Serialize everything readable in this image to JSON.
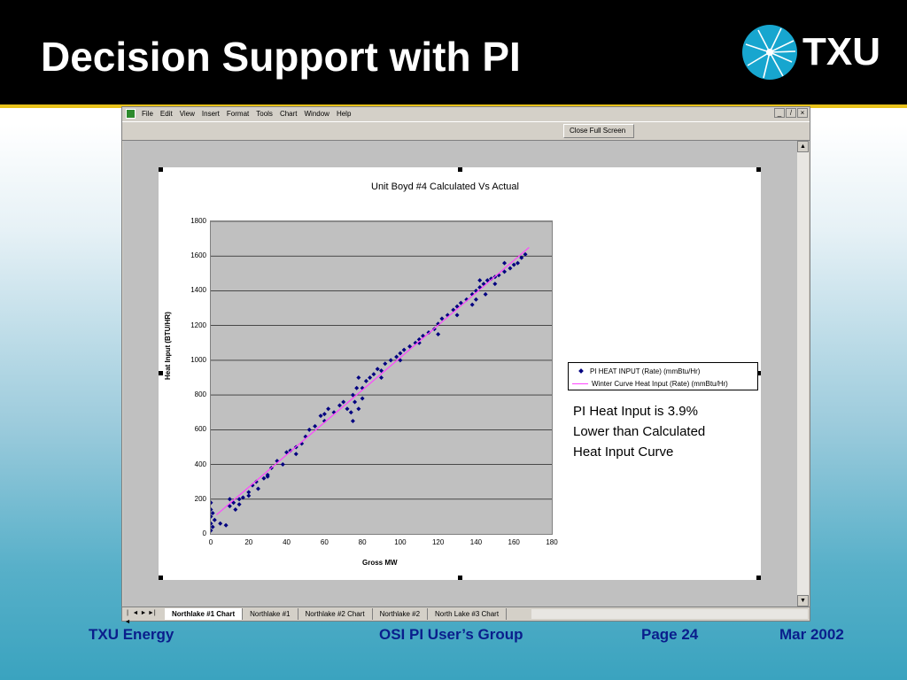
{
  "slide": {
    "title": "Decision Support with PI",
    "logo_text": "TXU"
  },
  "excel": {
    "menu": [
      "File",
      "Edit",
      "View",
      "Insert",
      "Format",
      "Tools",
      "Chart",
      "Window",
      "Help"
    ],
    "window_controls": [
      "_",
      "̸",
      "×"
    ],
    "close_full_screen_label": "Close Full Screen",
    "sheet_tabs": [
      "Northlake #1 Chart",
      "Northlake #1",
      "Northlake #2 Chart",
      "Northlake #2",
      "North Lake #3 Chart"
    ],
    "active_tab_index": 0
  },
  "chart_data": {
    "type": "scatter",
    "title": "Unit Boyd #4 Calculated Vs Actual",
    "xlabel": "Gross MW",
    "ylabel": "Heat Input (BTU/HR)",
    "xlim": [
      0,
      180
    ],
    "ylim": [
      0,
      1800
    ],
    "x_ticks": [
      0,
      20,
      40,
      60,
      80,
      100,
      120,
      140,
      160,
      180
    ],
    "y_ticks": [
      0,
      200,
      400,
      600,
      800,
      1000,
      1200,
      1400,
      1600,
      1800
    ],
    "grid": "horizontal",
    "legend_position": "right",
    "series": [
      {
        "name": "PI HEAT INPUT (Rate) (mmBtu/Hr)",
        "marker": "diamond",
        "color": "#000080",
        "points": [
          [
            0,
            20
          ],
          [
            0,
            60
          ],
          [
            0,
            100
          ],
          [
            0,
            140
          ],
          [
            0,
            180
          ],
          [
            1,
            40
          ],
          [
            1,
            120
          ],
          [
            2,
            80
          ],
          [
            5,
            60
          ],
          [
            8,
            50
          ],
          [
            10,
            160
          ],
          [
            10,
            200
          ],
          [
            12,
            180
          ],
          [
            13,
            140
          ],
          [
            15,
            170
          ],
          [
            17,
            210
          ],
          [
            20,
            240
          ],
          [
            22,
            280
          ],
          [
            24,
            300
          ],
          [
            25,
            260
          ],
          [
            28,
            320
          ],
          [
            30,
            340
          ],
          [
            32,
            380
          ],
          [
            35,
            420
          ],
          [
            38,
            400
          ],
          [
            40,
            470
          ],
          [
            42,
            480
          ],
          [
            45,
            500
          ],
          [
            48,
            520
          ],
          [
            50,
            560
          ],
          [
            52,
            600
          ],
          [
            55,
            620
          ],
          [
            58,
            680
          ],
          [
            60,
            690
          ],
          [
            62,
            720
          ],
          [
            65,
            700
          ],
          [
            68,
            740
          ],
          [
            70,
            760
          ],
          [
            72,
            720
          ],
          [
            74,
            700
          ],
          [
            75,
            650
          ],
          [
            75,
            800
          ],
          [
            76,
            760
          ],
          [
            77,
            840
          ],
          [
            78,
            900
          ],
          [
            78,
            720
          ],
          [
            80,
            780
          ],
          [
            80,
            840
          ],
          [
            82,
            880
          ],
          [
            84,
            900
          ],
          [
            86,
            920
          ],
          [
            88,
            950
          ],
          [
            90,
            940
          ],
          [
            92,
            980
          ],
          [
            95,
            1000
          ],
          [
            98,
            1020
          ],
          [
            100,
            1040
          ],
          [
            102,
            1060
          ],
          [
            105,
            1080
          ],
          [
            108,
            1100
          ],
          [
            110,
            1120
          ],
          [
            112,
            1140
          ],
          [
            115,
            1160
          ],
          [
            118,
            1180
          ],
          [
            120,
            1210
          ],
          [
            122,
            1240
          ],
          [
            125,
            1260
          ],
          [
            128,
            1290
          ],
          [
            130,
            1310
          ],
          [
            132,
            1330
          ],
          [
            135,
            1350
          ],
          [
            138,
            1380
          ],
          [
            140,
            1400
          ],
          [
            142,
            1420
          ],
          [
            144,
            1440
          ],
          [
            146,
            1460
          ],
          [
            148,
            1470
          ],
          [
            150,
            1480
          ],
          [
            152,
            1490
          ],
          [
            155,
            1510
          ],
          [
            158,
            1530
          ],
          [
            160,
            1550
          ],
          [
            162,
            1560
          ],
          [
            164,
            1590
          ],
          [
            166,
            1610
          ],
          [
            140,
            1350
          ],
          [
            142,
            1460
          ],
          [
            145,
            1380
          ],
          [
            150,
            1440
          ],
          [
            155,
            1560
          ],
          [
            138,
            1320
          ],
          [
            130,
            1260
          ],
          [
            120,
            1150
          ],
          [
            110,
            1100
          ],
          [
            100,
            1000
          ],
          [
            90,
            900
          ],
          [
            60,
            650
          ],
          [
            45,
            460
          ],
          [
            30,
            330
          ],
          [
            20,
            220
          ],
          [
            15,
            200
          ]
        ]
      },
      {
        "name": "Winter Curve Heat Input (Rate) (mmBtu/Hr)",
        "marker": "line",
        "color": "#ff44ff",
        "points": [
          [
            3,
            110
          ],
          [
            168,
            1650
          ]
        ]
      }
    ]
  },
  "annotation": {
    "lines": [
      "PI Heat Input is 3.9%",
      "Lower than Calculated",
      "Heat Input Curve"
    ]
  },
  "footer": {
    "left": "TXU Energy",
    "center": "OSI PI User’s Group",
    "page": "Page 24",
    "date": "Mar 2002"
  }
}
